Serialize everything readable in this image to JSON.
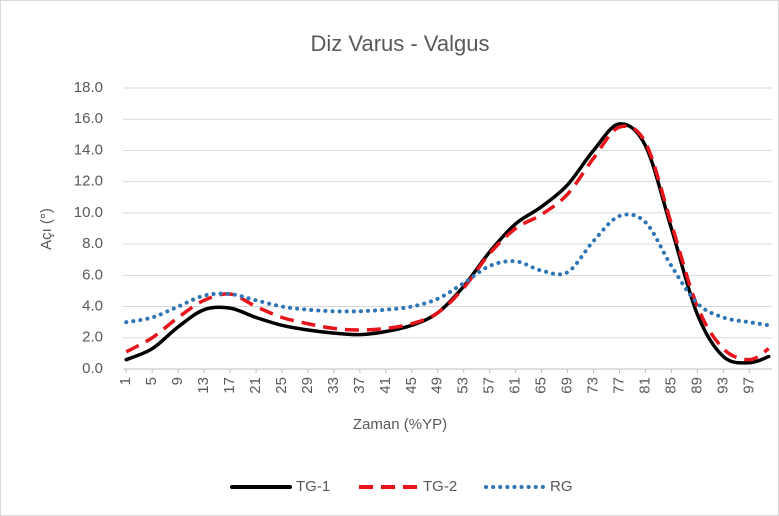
{
  "chart_data": {
    "type": "line",
    "title": "Diz Varus - Valgus",
    "xlabel": "Zaman (%YP)",
    "ylabel": "Açı (°)",
    "x": [
      1,
      5,
      9,
      13,
      17,
      21,
      25,
      29,
      33,
      37,
      41,
      45,
      49,
      53,
      57,
      61,
      65,
      69,
      73,
      77,
      81,
      85,
      89,
      93,
      97,
      100
    ],
    "xlim": [
      0.5,
      100.5
    ],
    "xticks": [
      1,
      5,
      9,
      13,
      17,
      21,
      25,
      29,
      33,
      37,
      41,
      45,
      49,
      53,
      57,
      61,
      65,
      69,
      73,
      77,
      81,
      85,
      89,
      93,
      97
    ],
    "ylim": [
      0,
      18
    ],
    "yticks": [
      {
        "value": 0,
        "label": "0.0"
      },
      {
        "value": 2,
        "label": "2.0"
      },
      {
        "value": 4,
        "label": "4.0"
      },
      {
        "value": 6,
        "label": "6.0"
      },
      {
        "value": 8,
        "label": "8.0"
      },
      {
        "value": 10,
        "label": "10.0"
      },
      {
        "value": 12,
        "label": "12.0"
      },
      {
        "value": 14,
        "label": "14.0"
      },
      {
        "value": 16,
        "label": "16.0"
      },
      {
        "value": 18,
        "label": "18.0"
      }
    ],
    "grid": true,
    "legend": "bottom",
    "series": [
      {
        "name": "TG-1",
        "color": "#000000",
        "dash": "solid",
        "values": [
          0.6,
          1.3,
          2.7,
          3.8,
          3.9,
          3.3,
          2.8,
          2.5,
          2.3,
          2.2,
          2.4,
          2.8,
          3.6,
          5.3,
          7.5,
          9.3,
          10.4,
          11.8,
          14.0,
          15.7,
          14.3,
          9.0,
          3.5,
          0.8,
          0.4,
          0.8
        ]
      },
      {
        "name": "TG-2",
        "color": "#e8141b",
        "dash": "dash",
        "values": [
          1.1,
          2.0,
          3.3,
          4.4,
          4.8,
          4.0,
          3.3,
          2.9,
          2.6,
          2.5,
          2.6,
          2.9,
          3.6,
          5.2,
          7.4,
          9.0,
          9.9,
          11.2,
          13.5,
          15.5,
          14.5,
          9.3,
          4.0,
          1.3,
          0.6,
          1.3
        ]
      },
      {
        "name": "RG",
        "color": "#2e75b6",
        "dash": "dot",
        "values": [
          3.0,
          3.3,
          4.0,
          4.7,
          4.8,
          4.4,
          4.0,
          3.8,
          3.7,
          3.7,
          3.8,
          4.0,
          4.5,
          5.5,
          6.6,
          6.9,
          6.3,
          6.2,
          8.2,
          9.8,
          9.4,
          6.6,
          4.2,
          3.3,
          3.0,
          2.8
        ]
      }
    ]
  }
}
